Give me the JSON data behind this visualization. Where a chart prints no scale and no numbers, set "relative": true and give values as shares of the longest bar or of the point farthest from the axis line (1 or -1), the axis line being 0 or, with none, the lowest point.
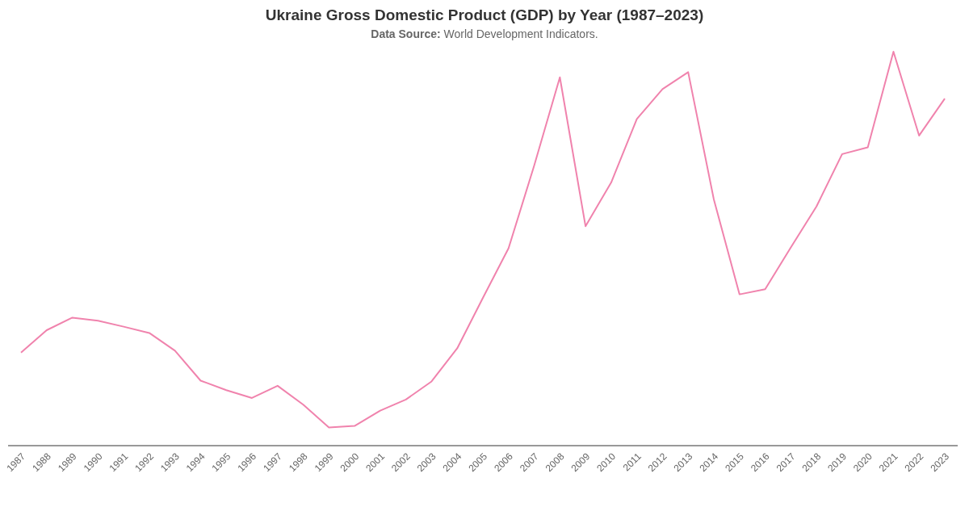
{
  "chart_data": {
    "type": "line",
    "title": "Ukraine Gross Domestic Product (GDP) by Year (1987–2023)",
    "subtitle": "Data Source: World Development Indicators.",
    "relative": true,
    "categories": [
      "1987",
      "1988",
      "1989",
      "1990",
      "1991",
      "1992",
      "1993",
      "1994",
      "1995",
      "1996",
      "1997",
      "1998",
      "1999",
      "2000",
      "2001",
      "2002",
      "2003",
      "2004",
      "2005",
      "2006",
      "2007",
      "2008",
      "2009",
      "2010",
      "2011",
      "2012",
      "2013",
      "2014",
      "2015",
      "2016",
      "2017",
      "2018",
      "2019",
      "2020",
      "2021",
      "2022",
      "2023"
    ],
    "series": [
      {
        "color": "#f083ad",
        "values": [
          0.236,
          0.293,
          0.325,
          0.317,
          0.302,
          0.286,
          0.241,
          0.165,
          0.141,
          0.121,
          0.152,
          0.104,
          0.046,
          0.05,
          0.089,
          0.117,
          0.163,
          0.247,
          0.375,
          0.501,
          0.711,
          0.935,
          0.557,
          0.668,
          0.829,
          0.905,
          0.948,
          0.625,
          0.384,
          0.397,
          0.503,
          0.607,
          0.74,
          0.757,
          1,
          0.787,
          0.881
        ]
      }
    ],
    "grid": false,
    "legend": false,
    "marker": "none",
    "line_style": "solid"
  }
}
